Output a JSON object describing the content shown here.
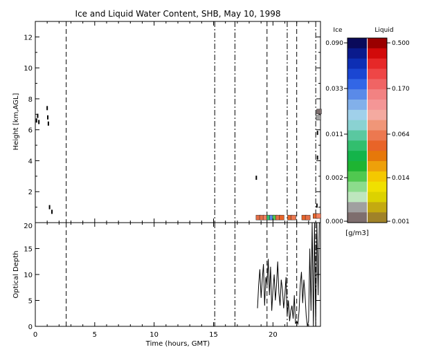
{
  "chart_data": [
    {
      "type": "heatmap",
      "title": "Ice and Liquid Water Content, SHB, May 10, 1998",
      "ylabel": "Height [km,AGL]",
      "xlim": [
        0,
        24
      ],
      "ylim": [
        0,
        13
      ],
      "x_ticks": [
        "0",
        "5",
        "10",
        "15",
        "20"
      ],
      "y_ticks": [
        "2",
        "4",
        "6",
        "8",
        "10",
        "12"
      ],
      "event_times": [
        2.6,
        15.1,
        16.8,
        19.5,
        21.2,
        22.0,
        23.6
      ],
      "legend": {
        "ice_label": "Ice",
        "liquid_label": "Liquid",
        "unit_label": "[g/m3]",
        "ice_ticks": [
          "0.090",
          "0.033",
          "0.011",
          "0.002",
          "0.000"
        ],
        "liquid_ticks": [
          "0.500",
          "0.170",
          "0.064",
          "0.014",
          "0.001"
        ],
        "ice_colors": [
          "#0a0a5a",
          "#0a1a8c",
          "#0d2eb4",
          "#1a46d2",
          "#3266e6",
          "#5a8ae8",
          "#82b0ea",
          "#a0d0ea",
          "#8ad2d2",
          "#5ac8a0",
          "#32be6e",
          "#14b44a",
          "#1eb432",
          "#50c850",
          "#8cdc8c",
          "#bee6be",
          "#a0a0a0",
          "#7e6e6e"
        ],
        "liquid_colors": [
          "#9a0000",
          "#d20a0a",
          "#e62828",
          "#ee4646",
          "#f06464",
          "#f28282",
          "#f49696",
          "#f4aaa0",
          "#f09678",
          "#ec7850",
          "#e86428",
          "#e6780a",
          "#eea00a",
          "#f4c800",
          "#f0e000",
          "#dcd200",
          "#c4aa10",
          "#a08228"
        ]
      },
      "cloud_cells": [
        {
          "t": 18.75,
          "h": 0.35,
          "c": "#e66e46"
        },
        {
          "t": 19.05,
          "h": 0.35,
          "c": "#e66e46"
        },
        {
          "t": 19.35,
          "h": 0.35,
          "c": "#f08060"
        },
        {
          "t": 19.65,
          "h": 0.35,
          "c": "#32be6e"
        },
        {
          "t": 19.9,
          "h": 0.35,
          "c": "#5a8ae8"
        },
        {
          "t": 20.15,
          "h": 0.35,
          "c": "#50c850"
        },
        {
          "t": 20.4,
          "h": 0.35,
          "c": "#e66e46"
        },
        {
          "t": 20.7,
          "h": 0.35,
          "c": "#e86428"
        },
        {
          "t": 21.4,
          "h": 0.35,
          "c": "#e86428"
        },
        {
          "t": 21.7,
          "h": 0.35,
          "c": "#ec7850"
        },
        {
          "t": 22.6,
          "h": 0.35,
          "c": "#e86428"
        },
        {
          "t": 22.9,
          "h": 0.35,
          "c": "#e66e46"
        },
        {
          "t": 23.55,
          "h": 0.45,
          "c": "#e86428"
        },
        {
          "t": 23.8,
          "h": 0.45,
          "c": "#f08060"
        },
        {
          "t": 23.8,
          "h": 6.8,
          "c": "#a0a0a0"
        },
        {
          "t": 23.85,
          "h": 7.2,
          "c": "#7e6e6e"
        }
      ],
      "cloud_specks": [
        {
          "t": 0.1,
          "h": 6.6
        },
        {
          "t": 0.2,
          "h": 6.9
        },
        {
          "t": 0.3,
          "h": 6.5
        },
        {
          "t": 1.0,
          "h": 7.4
        },
        {
          "t": 1.05,
          "h": 6.8
        },
        {
          "t": 1.1,
          "h": 6.4
        },
        {
          "t": 1.2,
          "h": 1.0
        },
        {
          "t": 1.4,
          "h": 0.7
        },
        {
          "t": 18.6,
          "h": 2.9
        },
        {
          "t": 23.7,
          "h": 1.1
        },
        {
          "t": 23.75,
          "h": 5.8
        },
        {
          "t": 23.75,
          "h": 4.2
        }
      ]
    },
    {
      "type": "line",
      "xlabel": "Time (hours, GMT)",
      "ylabel": "Optical Depth",
      "xlim": [
        0,
        24
      ],
      "ylim": [
        0,
        20
      ],
      "x_ticks": [
        "0",
        "5",
        "10",
        "15",
        "20"
      ],
      "y_ticks": [
        "0",
        "5",
        "10",
        "15",
        "20"
      ],
      "x": [
        18.7,
        18.8,
        18.9,
        19.0,
        19.1,
        19.2,
        19.3,
        19.4,
        19.5,
        19.6,
        19.7,
        19.8,
        19.9,
        20.0,
        20.1,
        20.2,
        20.3,
        20.4,
        20.5,
        20.6,
        20.7,
        20.8,
        20.9,
        21.0,
        21.1,
        21.2,
        21.3,
        21.4,
        21.5,
        21.6,
        21.7,
        21.8,
        21.9,
        22.0,
        22.1,
        22.2,
        22.3,
        22.4,
        22.5,
        22.6,
        22.7,
        22.8,
        22.9,
        23.0,
        23.1,
        23.2,
        23.3,
        23.4,
        23.5,
        23.6,
        23.7,
        23.8,
        23.9
      ],
      "y": [
        3.5,
        8.0,
        11.0,
        5.5,
        9.0,
        12.0,
        4.0,
        9.5,
        8.0,
        13.0,
        6.0,
        11.5,
        3.0,
        7.0,
        10.0,
        5.0,
        8.0,
        12.5,
        6.5,
        4.0,
        9.0,
        7.0,
        3.5,
        6.0,
        9.5,
        2.0,
        5.0,
        1.0,
        3.0,
        4.0,
        1.5,
        6.0,
        0.5,
        1.0,
        0.5,
        3.0,
        8.0,
        10.5,
        4.5,
        9.0,
        6.0,
        2.0,
        0.0,
        1.0,
        15.0,
        3.0,
        20.0,
        0.0,
        20.0,
        0.0,
        20.0,
        6.0,
        20.0
      ]
    }
  ]
}
